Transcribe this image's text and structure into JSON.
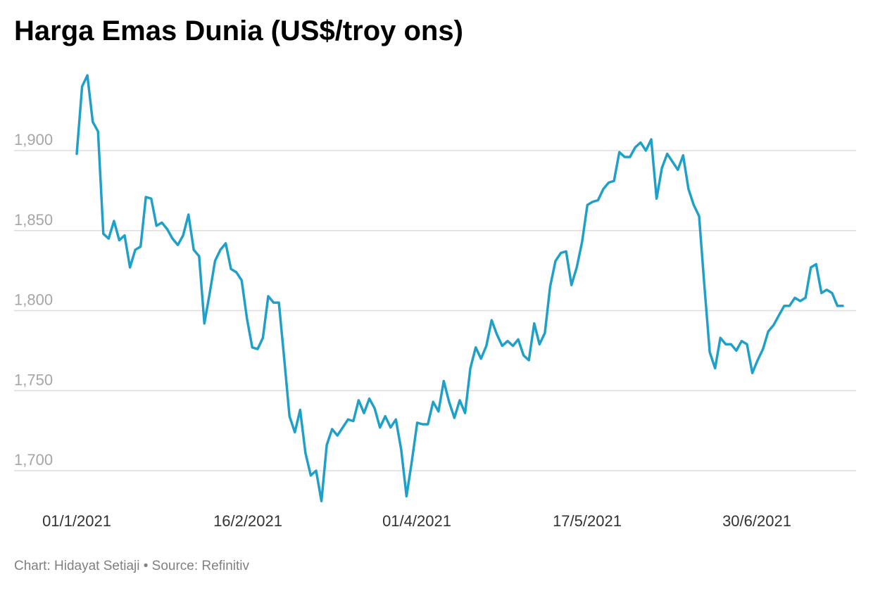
{
  "title": "Harga Emas Dunia (US$/troy ons)",
  "footer": "Chart: Hidayat Setiaji • Source: Refinitiv",
  "colors": {
    "line": "#1fa0c9",
    "grid": "#dddddd",
    "tick_y": "#a6a6a6",
    "tick_x": "#333333"
  },
  "chart_data": {
    "type": "line",
    "title": "Harga Emas Dunia (US$/troy ons)",
    "xlabel": "",
    "ylabel": "",
    "grid": true,
    "ylim": [
      1680,
      1950
    ],
    "yticks": [
      1700,
      1750,
      1800,
      1850,
      1900
    ],
    "ytick_labels": [
      "1,700",
      "1,750",
      "1,800",
      "1,850",
      "1,900"
    ],
    "xtick_labels": [
      "01/1/2021",
      "16/2/2021",
      "01/4/2021",
      "17/5/2021",
      "30/6/2021"
    ],
    "series": [
      {
        "values": [
          1898,
          1940,
          1947,
          1918,
          1912,
          1848,
          1845,
          1856,
          1844,
          1847,
          1827,
          1838,
          1840,
          1871,
          1870,
          1853,
          1855,
          1851,
          1845,
          1841,
          1847,
          1860,
          1838,
          1834,
          1792,
          1811,
          1831,
          1838,
          1842,
          1826,
          1824,
          1819,
          1795,
          1777,
          1776,
          1783,
          1809,
          1805,
          1805,
          1770,
          1734,
          1724,
          1738,
          1711,
          1697,
          1700,
          1681,
          1716,
          1726,
          1722,
          1727,
          1732,
          1731,
          1744,
          1736,
          1745,
          1739,
          1727,
          1734,
          1727,
          1732,
          1713,
          1684,
          1706,
          1730,
          1729,
          1729,
          1743,
          1737,
          1756,
          1743,
          1733,
          1744,
          1736,
          1764,
          1777,
          1770,
          1778,
          1794,
          1785,
          1778,
          1781,
          1778,
          1782,
          1772,
          1769,
          1792,
          1779,
          1786,
          1815,
          1831,
          1836,
          1837,
          1816,
          1827,
          1843,
          1866,
          1868,
          1869,
          1876,
          1880,
          1881,
          1899,
          1896,
          1896,
          1902,
          1905,
          1900,
          1907,
          1870,
          1889,
          1898,
          1893,
          1888,
          1897,
          1876,
          1866,
          1859,
          1815,
          1774,
          1764,
          1783,
          1779,
          1779,
          1775,
          1781,
          1779,
          1761,
          1769,
          1776,
          1787,
          1791,
          1797,
          1803,
          1803,
          1808,
          1806,
          1808,
          1827,
          1829,
          1811,
          1813,
          1811,
          1803,
          1803
        ]
      }
    ]
  }
}
